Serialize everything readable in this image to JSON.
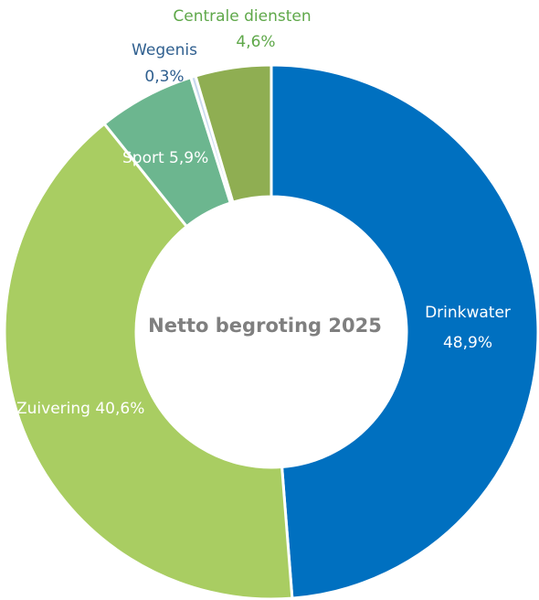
{
  "chart_data": {
    "type": "donut",
    "title": "Netto begroting 2025",
    "categories": [
      "Drinkwater",
      "Zuivering",
      "Sport",
      "Wegenis",
      "Centrale diensten"
    ],
    "values": [
      48.9,
      40.6,
      5.9,
      0.3,
      4.6
    ],
    "value_labels": [
      "48,9%",
      "40,6%",
      "5,9%",
      "0,3%",
      "4,6%"
    ],
    "colors": [
      "#0070c0",
      "#a9cd62",
      "#6cb68f",
      "#c9d9ee",
      "#8fae52"
    ]
  }
}
